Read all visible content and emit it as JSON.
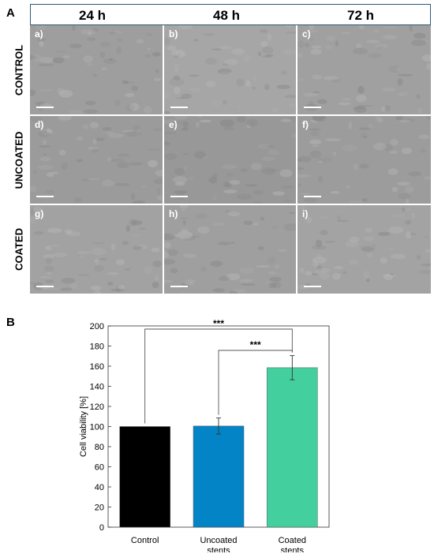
{
  "panel_a": {
    "letter": "A",
    "time_points": [
      "24 h",
      "48 h",
      "72 h"
    ],
    "rows": [
      "CONTROL",
      "UNCOATED",
      "COATED"
    ],
    "cell_labels": [
      "a)",
      "b)",
      "c)",
      "d)",
      "e)",
      "f)",
      "g)",
      "h)",
      "i)"
    ]
  },
  "panel_b": {
    "letter": "B",
    "significance_labels": [
      "***",
      "***"
    ]
  },
  "chart_data": {
    "type": "bar",
    "categories": [
      "Control",
      "Uncoated stents",
      "Coated stents"
    ],
    "category_lines": [
      [
        "Control"
      ],
      [
        "Uncoated",
        "stents"
      ],
      [
        "Coated",
        "stents"
      ]
    ],
    "values": [
      100,
      100.5,
      158.5
    ],
    "errors": [
      0,
      8,
      12
    ],
    "colors": [
      "#000000",
      "#0284c7",
      "#43d09e"
    ],
    "ylabel": "Cell viability [%]",
    "xlabel": "",
    "ylim": [
      0,
      200
    ],
    "yticks": [
      0,
      20,
      40,
      60,
      80,
      100,
      120,
      140,
      160,
      180,
      200
    ],
    "grid": false,
    "significance": [
      {
        "from": 0,
        "to": 2,
        "label": "***"
      },
      {
        "from": 1,
        "to": 2,
        "label": "***"
      }
    ]
  }
}
